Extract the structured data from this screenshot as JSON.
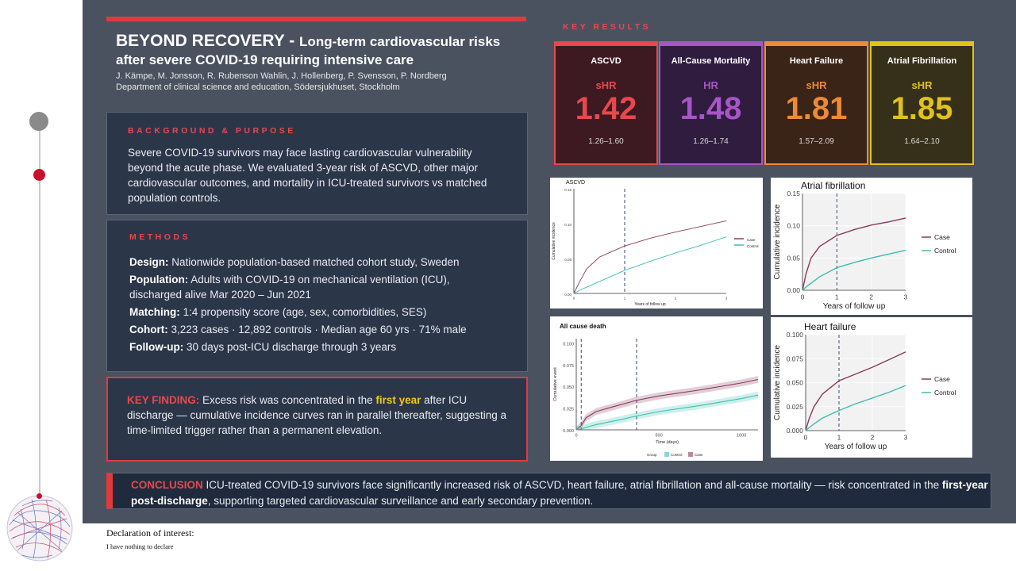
{
  "header": {
    "title_main": "BEYOND RECOVERY - ",
    "title_sub": "Long-term cardiovascular risks",
    "title_line2": "after severe COVID-19 requiring intensive care",
    "authors": "J. Kämpe, M. Jonsson, R. Rubenson Wahlin, J. Hollenberg, P. Svensson, P. Nordberg",
    "department": "Department of clinical science and education, Södersjukhuset, Stockholm"
  },
  "background": {
    "heading": "BACKGROUND & PURPOSE",
    "text": "Severe COVID-19 survivors may face lasting cardiovascular vulnerability beyond the acute phase. We evaluated 3-year risk of ASCVD, other major cardiovascular outcomes, and mortality in ICU-treated survivors vs matched population controls."
  },
  "methods": {
    "heading": "METHODS",
    "rows": [
      {
        "label": "Design:",
        "text": " Nationwide population-based matched cohort study, Sweden"
      },
      {
        "label": "Population:",
        "text": " Adults with COVID-19 on mechanical ventilation (ICU), discharged alive Mar 2020 – Jun 2021"
      },
      {
        "label": "Matching:",
        "text": " 1:4 propensity score (age, sex, comorbidities, SES)"
      },
      {
        "label": "Cohort:",
        "text": " 3,223 cases · 12,892 controls · Median age 60 yrs · 71% male"
      },
      {
        "label": "Follow-up:",
        "text": " 30 days post-ICU discharge through 3 years"
      }
    ]
  },
  "key_finding": {
    "label": "KEY FINDING:",
    "text_before": " Excess risk was concentrated in the ",
    "highlight": "first year",
    "text_after": " after ICU discharge — cumulative incidence curves ran in parallel thereafter, suggesting a time-limited trigger rather than a permanent elevation."
  },
  "key_results": {
    "heading": "KEY RESULTS",
    "cards": [
      {
        "title": "ASCVD",
        "metric": "sHR",
        "value": "1.42",
        "ci": "1.26–1.60",
        "color": "#e8484d",
        "bg": "#3d1a22"
      },
      {
        "title": "All-Cause Mortality",
        "metric": "HR",
        "value": "1.48",
        "ci": "1.26–1.74",
        "color": "#a855c8",
        "bg": "#2f1c3e"
      },
      {
        "title": "Heart Failure",
        "metric": "sHR",
        "value": "1.81",
        "ci": "1.57–2.09",
        "color": "#ee8a35",
        "bg": "#3a2418"
      },
      {
        "title": "Atrial Fibrillation",
        "metric": "sHR",
        "value": "1.85",
        "ci": "1.64–2.10",
        "color": "#e0c21a",
        "bg": "#36301a"
      }
    ]
  },
  "charts": {
    "case_color": "#8a3a5a",
    "control_color": "#3abfb0",
    "ascvd": {
      "title": "ASCVD",
      "ylabel": "Cumulative incidence",
      "xlabel": "Years of follow up",
      "yticks": [
        "0.15",
        "0.10",
        "0.05",
        "0.00"
      ],
      "xticks": [
        "0",
        "1",
        "2",
        "3"
      ],
      "legend": [
        "Case",
        "Control"
      ]
    },
    "death": {
      "title": "All cause death",
      "ylabel": "Cumulative event",
      "xlabel": "Time (days)",
      "yticks": [
        "0.100",
        "0.075",
        "0.050",
        "0.025",
        "0.000"
      ],
      "xticks": [
        "0",
        "500",
        "1000"
      ],
      "legend_title": "Group",
      "legend": [
        "Control",
        "Case"
      ]
    },
    "af": {
      "title": "Atrial fibrillation",
      "ylabel": "Cumulative incidence",
      "xlabel": "Years of follow up",
      "yticks": [
        "0.15",
        "0.10",
        "0.05",
        "0.00"
      ],
      "xticks": [
        "0",
        "1",
        "2",
        "3"
      ],
      "legend": [
        "Case",
        "Control"
      ]
    },
    "hf": {
      "title": "Heart failure",
      "ylabel": "Cumulative incidence",
      "xlabel": "Years of follow up",
      "yticks": [
        "0.100",
        "0.075",
        "0.050",
        "0.025",
        "0.000"
      ],
      "xticks": [
        "0",
        "1",
        "2",
        "3"
      ],
      "legend": [
        "Case",
        "Control"
      ]
    }
  },
  "chart_data": [
    {
      "type": "line",
      "title": "ASCVD",
      "xlabel": "Years of follow up",
      "ylabel": "Cumulative incidence",
      "xlim": [
        0,
        3
      ],
      "ylim": [
        0,
        0.15
      ],
      "x": [
        0,
        0.1,
        0.25,
        0.5,
        1,
        1.5,
        2,
        2.5,
        3
      ],
      "series": [
        {
          "name": "Case",
          "values": [
            0,
            0.015,
            0.035,
            0.052,
            0.068,
            0.079,
            0.088,
            0.096,
            0.104
          ]
        },
        {
          "name": "Control",
          "values": [
            0,
            0.004,
            0.009,
            0.017,
            0.033,
            0.046,
            0.058,
            0.069,
            0.081
          ]
        }
      ]
    },
    {
      "type": "line",
      "title": "All cause death",
      "xlabel": "Time (days)",
      "ylabel": "Cumulative event",
      "xlim": [
        0,
        1100
      ],
      "ylim": [
        0,
        0.105
      ],
      "x": [
        0,
        30,
        60,
        120,
        250,
        365,
        500,
        750,
        1000,
        1100
      ],
      "series": [
        {
          "name": "Case",
          "values": [
            0,
            0.005,
            0.014,
            0.021,
            0.028,
            0.034,
            0.039,
            0.046,
            0.054,
            0.058
          ]
        },
        {
          "name": "Control",
          "values": [
            0,
            0.001,
            0.003,
            0.006,
            0.011,
            0.016,
            0.021,
            0.028,
            0.036,
            0.04
          ]
        }
      ]
    },
    {
      "type": "line",
      "title": "Atrial fibrillation",
      "xlabel": "Years of follow up",
      "ylabel": "Cumulative incidence",
      "xlim": [
        0,
        3
      ],
      "ylim": [
        0,
        0.15
      ],
      "x": [
        0,
        0.1,
        0.25,
        0.5,
        1,
        1.5,
        2,
        2.5,
        3
      ],
      "series": [
        {
          "name": "Case",
          "values": [
            0,
            0.025,
            0.05,
            0.068,
            0.085,
            0.094,
            0.101,
            0.106,
            0.112
          ]
        },
        {
          "name": "Control",
          "values": [
            0,
            0.005,
            0.011,
            0.021,
            0.035,
            0.043,
            0.05,
            0.056,
            0.062
          ]
        }
      ]
    },
    {
      "type": "line",
      "title": "Heart failure",
      "xlabel": "Years of follow up",
      "ylabel": "Cumulative incidence",
      "xlim": [
        0,
        3
      ],
      "ylim": [
        0,
        0.1
      ],
      "x": [
        0,
        0.1,
        0.25,
        0.5,
        1,
        1.5,
        2,
        2.5,
        3
      ],
      "series": [
        {
          "name": "Case",
          "values": [
            0,
            0.012,
            0.025,
            0.038,
            0.052,
            0.059,
            0.066,
            0.074,
            0.082
          ]
        },
        {
          "name": "Control",
          "values": [
            0,
            0.003,
            0.007,
            0.013,
            0.021,
            0.028,
            0.034,
            0.04,
            0.047
          ]
        }
      ]
    }
  ],
  "conclusion": {
    "label": "CONCLUSION",
    "text_before": "  ICU-treated COVID-19 survivors face significantly increased risk of ASCVD, heart failure, atrial fibrillation and all-cause mortality — risk concentrated in the ",
    "highlight": "first-year post-discharge",
    "text_after": ", supporting targeted cardiovascular surveillance and early secondary prevention."
  },
  "declaration": {
    "title": "Declaration of interest:",
    "text": "I have nothing to declare"
  }
}
